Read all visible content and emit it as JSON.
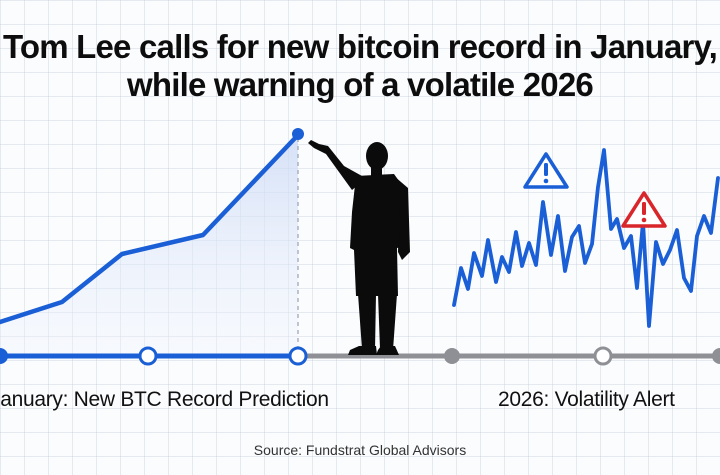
{
  "headline": {
    "line1": "Tom Lee calls for new bitcoin record in January,",
    "line2": "while warning of a volatile 2026"
  },
  "timeline": {
    "left_label": "January: New BTC Record Prediction",
    "right_label": "2026: Volatility Alert"
  },
  "source": "Source: Fundstrat Global Advisors",
  "icons": {
    "left_warning": "warning-triangle-icon",
    "right_warning": "warning-triangle-icon",
    "person": "pointing-man-silhouette"
  },
  "colors": {
    "accent_blue": "#1a5fd6",
    "warning_blue": "#1a5fd6",
    "warning_red": "#d8262b",
    "timeline_gray": "#8e9096",
    "text": "#111111"
  }
}
